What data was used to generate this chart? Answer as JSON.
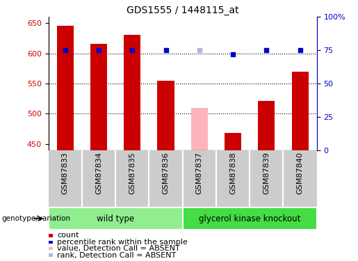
{
  "title": "GDS1555 / 1448115_at",
  "samples": [
    "GSM87833",
    "GSM87834",
    "GSM87835",
    "GSM87836",
    "GSM87837",
    "GSM87838",
    "GSM87839",
    "GSM87840"
  ],
  "bar_values": [
    645,
    615,
    630,
    555,
    510,
    468,
    521,
    570
  ],
  "bar_colors": [
    "#cc0000",
    "#cc0000",
    "#cc0000",
    "#cc0000",
    "#ffb3ba",
    "#cc0000",
    "#cc0000",
    "#cc0000"
  ],
  "rank_values": [
    75,
    75,
    75,
    75,
    75,
    72,
    75,
    75
  ],
  "rank_colors": [
    "#0000cc",
    "#0000cc",
    "#0000cc",
    "#0000cc",
    "#b0b8d8",
    "#0000cc",
    "#0000cc",
    "#0000cc"
  ],
  "ylim_left": [
    440,
    660
  ],
  "ylim_right": [
    0,
    100
  ],
  "yticks_left": [
    450,
    500,
    550,
    600,
    650
  ],
  "yticks_right": [
    0,
    25,
    50,
    75,
    100
  ],
  "ytick_labels_right": [
    "0",
    "25",
    "50",
    "75",
    "100%"
  ],
  "hlines": [
    500,
    550,
    600
  ],
  "wild_type_label": "wild type",
  "knockout_label": "glycerol kinase knockout",
  "genotype_label": "genotype/variation",
  "legend_items": [
    {
      "label": "count",
      "color": "#cc0000"
    },
    {
      "label": "percentile rank within the sample",
      "color": "#0000cc"
    },
    {
      "label": "value, Detection Call = ABSENT",
      "color": "#ffb3ba"
    },
    {
      "label": "rank, Detection Call = ABSENT",
      "color": "#b0b8d8"
    }
  ],
  "bar_width": 0.5,
  "background_color": "#ffffff",
  "wild_type_green": "#90ee90",
  "knockout_green": "#44dd44",
  "gray_color": "#cccccc",
  "title_fontsize": 10,
  "tick_fontsize": 8,
  "legend_fontsize": 8
}
